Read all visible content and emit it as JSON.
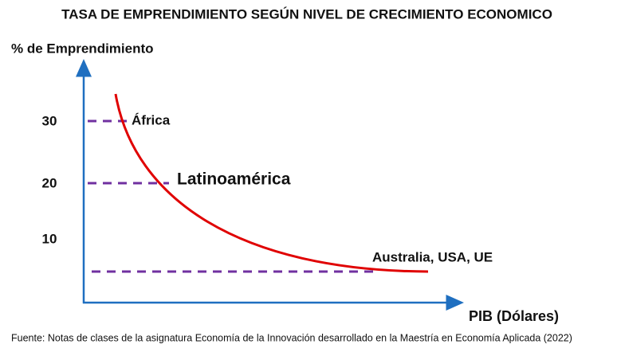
{
  "title": "TASA DE EMPRENDIMIENTO SEGÚN NIVEL DE CRECIMIENTO ECONOMICO",
  "y_axis_label": "% de Emprendimiento",
  "x_axis_label": "PIB (Dólares)",
  "yticks": [
    30,
    20,
    10
  ],
  "annotations": [
    "África",
    "Latinoamérica",
    "Australia, USA, UE"
  ],
  "source": "Fuente: Notas de clases de la asignatura Economía de la Innovación desarrollado en la Maestría en Economía Aplicada (2022)"
}
